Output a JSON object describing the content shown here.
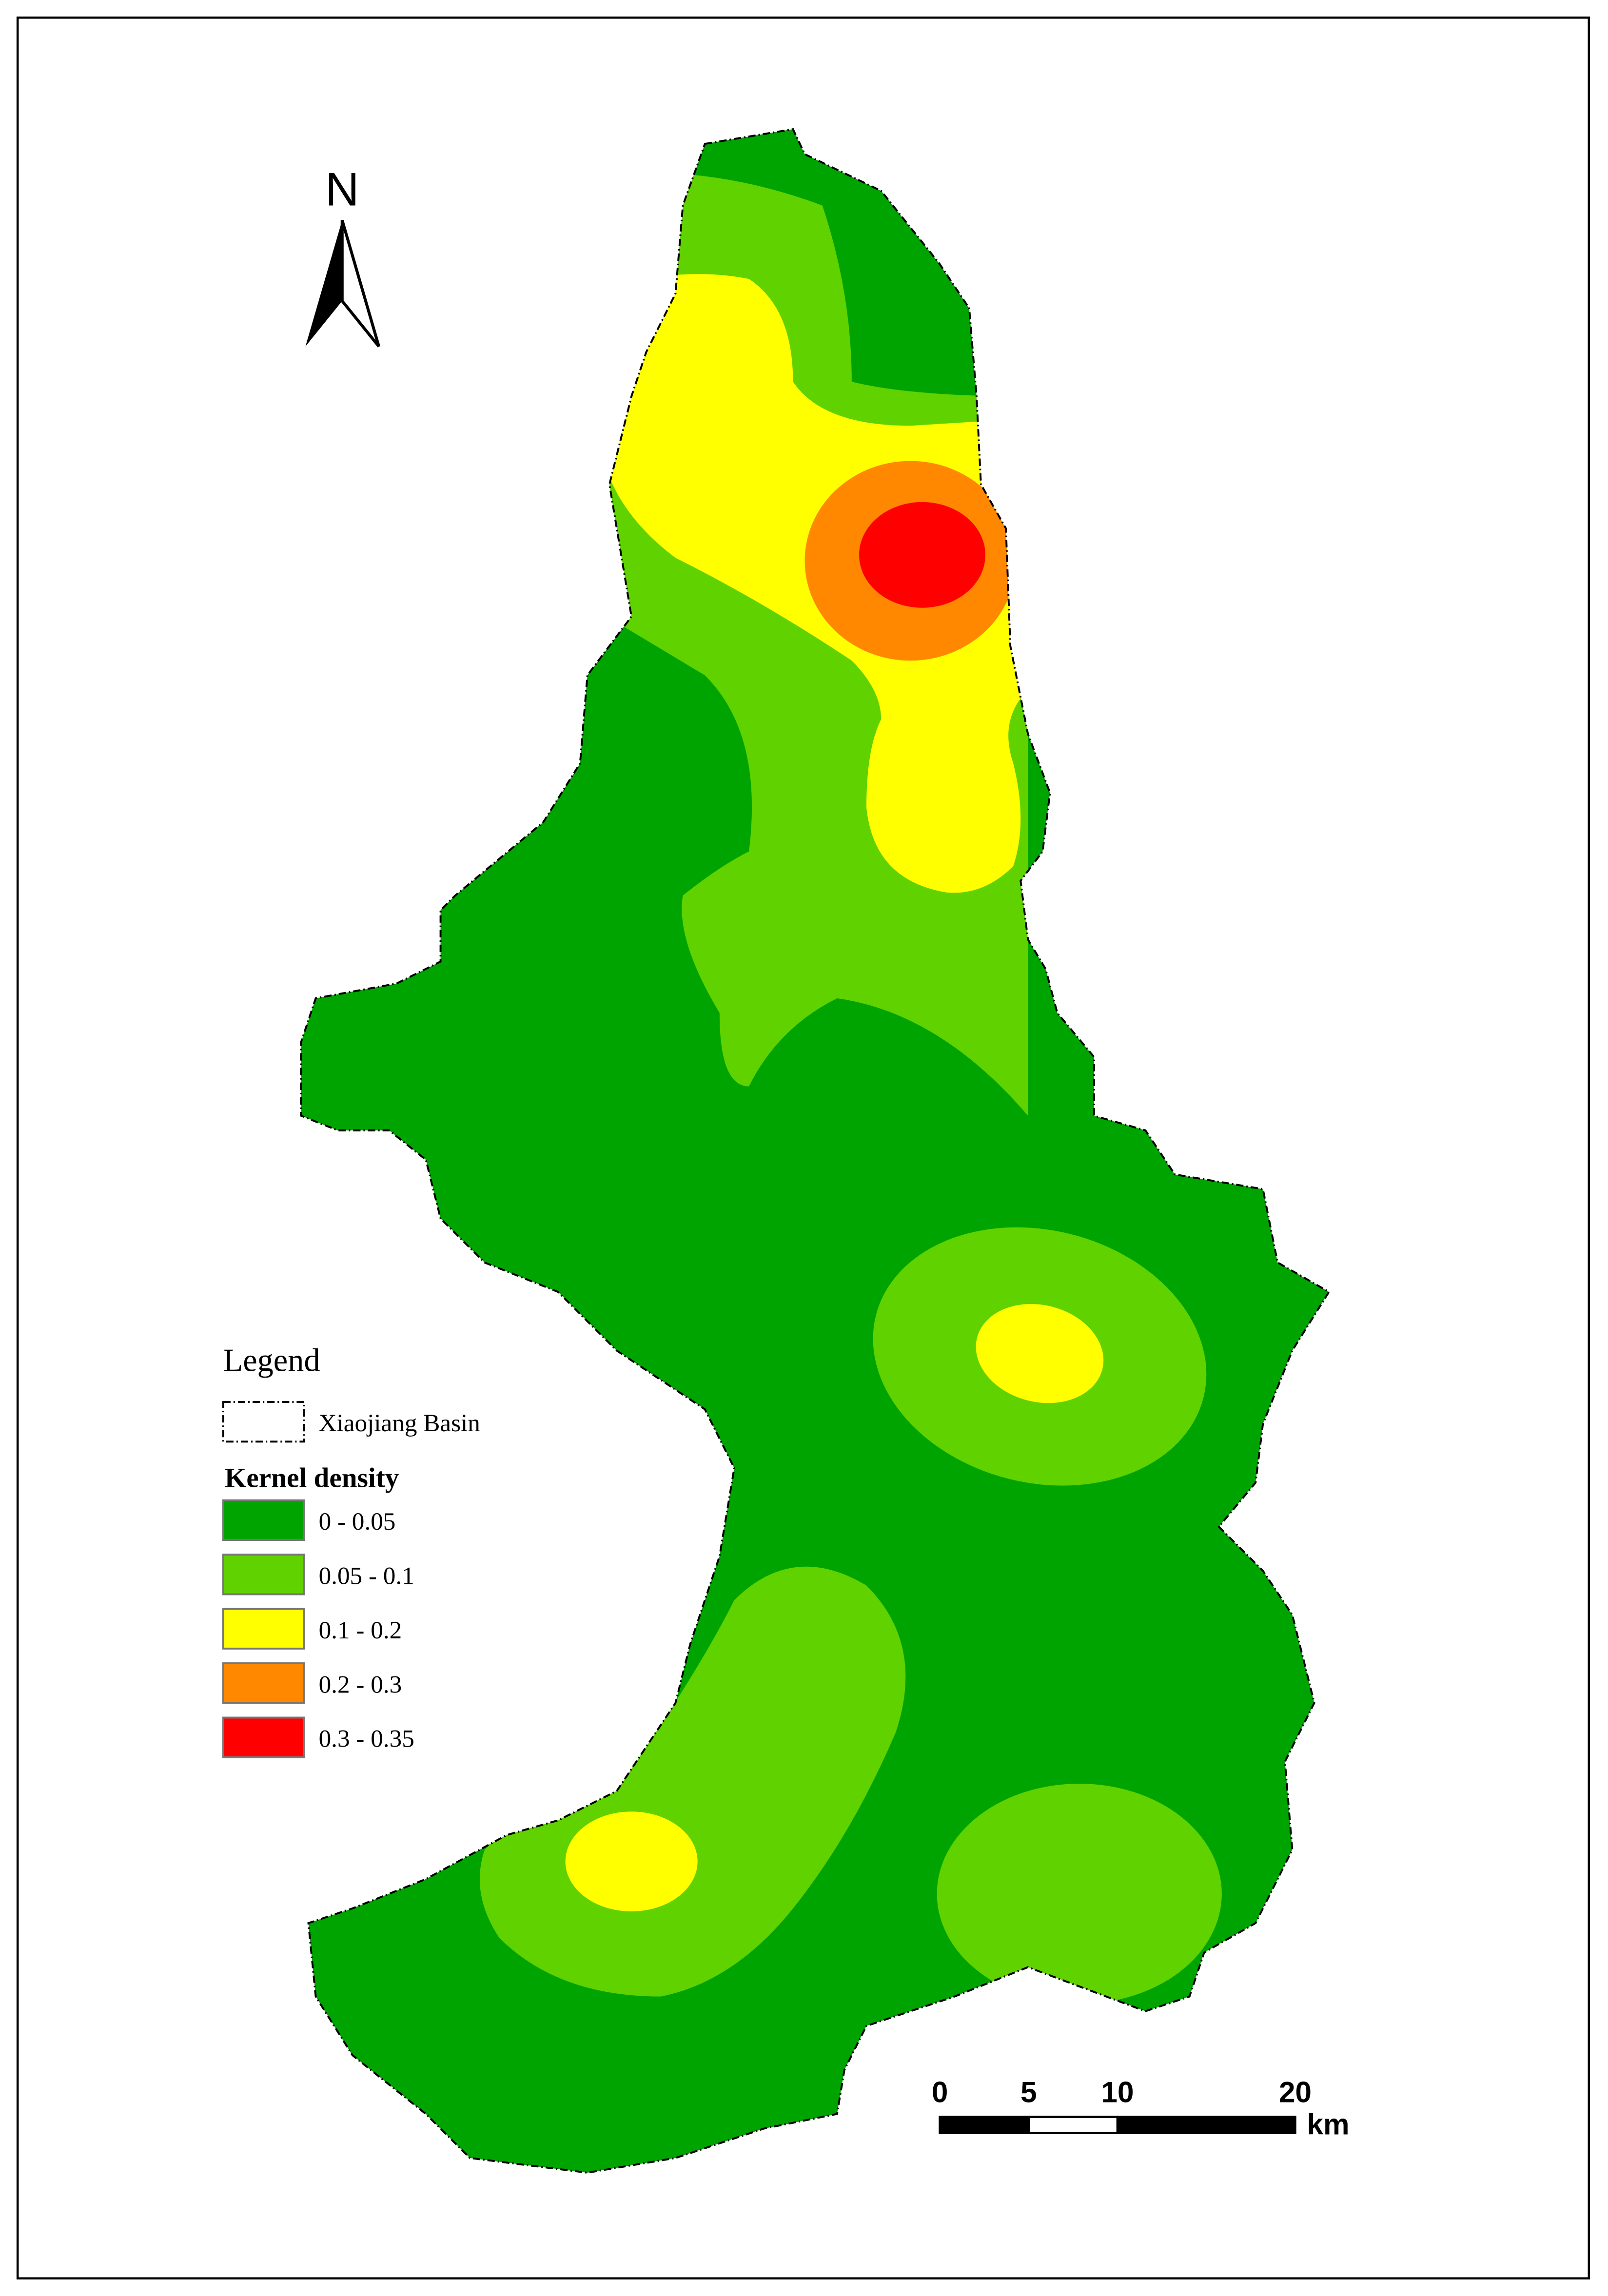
{
  "north_label": "N",
  "legend": {
    "title": "Legend",
    "boundary_label": "Xiaojiang Basin",
    "density_title": "Kernel density",
    "classes": [
      {
        "label": "0 - 0.05",
        "color": "#00a400"
      },
      {
        "label": "0.05 - 0.1",
        "color": "#5fd200"
      },
      {
        "label": "0.1 - 0.2",
        "color": "#ffff00"
      },
      {
        "label": "0.2 - 0.3",
        "color": "#ff8800"
      },
      {
        "label": "0.3 - 0.35",
        "color": "#ff0000"
      }
    ]
  },
  "scale_bar": {
    "ticks": [
      0,
      5,
      10,
      20
    ],
    "unit": "km"
  }
}
